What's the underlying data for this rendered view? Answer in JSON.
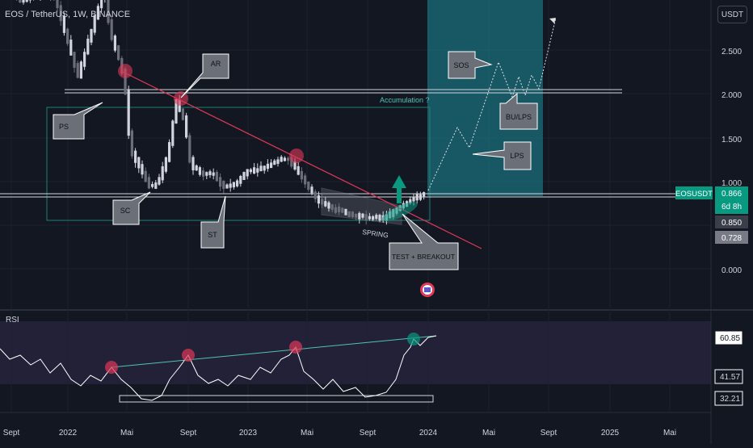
{
  "header": {
    "symbol_title": "EOS / TetherUS, 1W, BINANCE",
    "currency_label": "USDT"
  },
  "colors": {
    "background": "#131722",
    "rsi_band": "#2a2540",
    "projection_box": "#1b6f7b",
    "trendline": "#e0385a",
    "rsi_line": "#ffffff",
    "rsi_trend": "#4fc3b3",
    "price_tag": "#089981",
    "event_flag": "#e0385a"
  },
  "price_axis": {
    "ticks": [
      {
        "label": "2.500",
        "value": 2.5
      },
      {
        "label": "2.000",
        "value": 2.0
      },
      {
        "label": "1.500",
        "value": 1.5
      },
      {
        "label": "1.000",
        "value": 1.0
      },
      {
        "label": "0.000",
        "value": 0.0
      }
    ],
    "last_price_tag": {
      "symbol": "EOSUSDT",
      "price": "0.866",
      "countdown": "6d 8h"
    },
    "level_tags": [
      {
        "price": "0.850",
        "value": 0.85
      },
      {
        "price": "0.728",
        "value": 0.728
      }
    ]
  },
  "rsi_panel": {
    "title": "RSI",
    "axis_tags": [
      {
        "label": "60.85",
        "value": 60.85
      },
      {
        "label": "41.57",
        "value": 41.57
      },
      {
        "label": "32.21",
        "value": 32.21
      }
    ]
  },
  "time_axis": [
    "Sept",
    "2022",
    "Mai",
    "Sept",
    "2023",
    "Mai",
    "Sept",
    "2024",
    "Mai",
    "Sept",
    "2025",
    "Mai"
  ],
  "annotations": {
    "callouts": [
      "PS",
      "AR",
      "SC",
      "ST",
      "TEST + BREAKOUT",
      "SOS",
      "BU/LPS",
      "LPS"
    ],
    "accumulation_label": "Accumulation ?",
    "spring_label": "SPRING"
  },
  "icons": [
    "event-flag-icon",
    "breakout-up-arrow-icon"
  ]
}
